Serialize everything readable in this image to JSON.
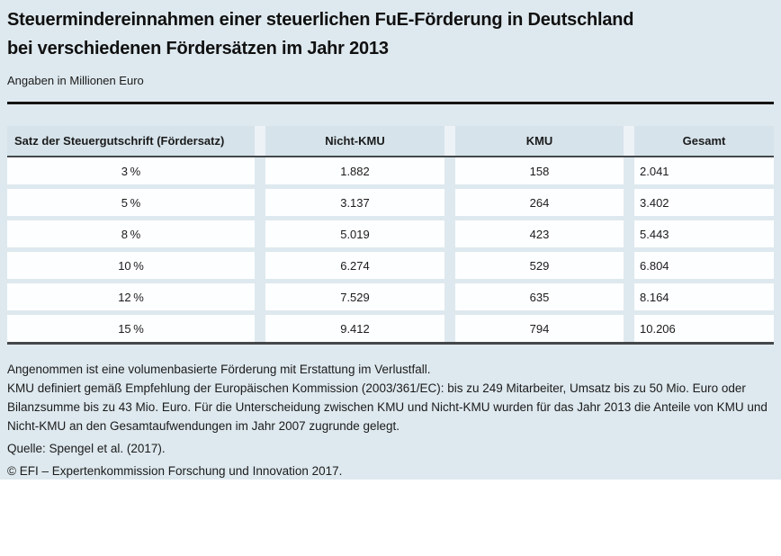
{
  "header": {
    "title_line1": "Steuermindereinnahmen einer steuerlichen FuE-Förderung in Deutschland",
    "title_line2": "bei verschiedenen Fördersätzen im Jahr 2013",
    "subtitle": "Angaben in Millionen Euro"
  },
  "table": {
    "columns": [
      "Satz der Steuergutschrift (Fördersatz)",
      "Nicht-KMU",
      "KMU",
      "Gesamt"
    ],
    "rows": [
      [
        "3 %",
        "1.882",
        "158",
        "2.041"
      ],
      [
        "5 %",
        "3.137",
        "264",
        "3.402"
      ],
      [
        "8 %",
        "5.019",
        "423",
        "5.443"
      ],
      [
        "10 %",
        "6.274",
        "529",
        "6.804"
      ],
      [
        "12 %",
        "7.529",
        "635",
        "8.164"
      ],
      [
        "15 %",
        "9.412",
        "794",
        "10.206"
      ]
    ]
  },
  "footnotes": {
    "note1": "Angenommen ist eine volumenbasierte Förderung mit Erstattung im Verlustfall.",
    "note2": "KMU definiert gemäß Empfehlung der Europäischen Kommission (2003/361/EC): bis zu 249 Mitarbeiter, Umsatz bis zu 50 Mio. Euro oder Bilanzsumme bis zu 43 Mio. Euro. Für die Unterscheidung zwischen KMU und Nicht-KMU wurden für das Jahr 2013 die Anteile von KMU und Nicht-KMU an den Gesamtaufwendungen im Jahr 2007 zugrunde gelegt.",
    "source": "Quelle: Spengel et al. (2017).",
    "copyright": "© EFI – Expertenkommission Forschung und Innovation 2017."
  },
  "colors": {
    "page_background": "#dee9ef",
    "header_cell_background": "#d6e3eb",
    "header_gap_background": "#ecf2f6",
    "data_cell_background": "#fdfeff",
    "rule_color": "#141414",
    "table_border_color": "#43484b",
    "text_color": "#1b1b1b"
  },
  "chart_data": {
    "type": "table",
    "title": "Steuermindereinnahmen einer steuerlichen FuE-Förderung in Deutschland bei verschiedenen Fördersätzen im Jahr 2013",
    "unit": "Millionen Euro",
    "columns": [
      "Satz der Steuergutschrift (Fördersatz)",
      "Nicht-KMU",
      "KMU",
      "Gesamt"
    ],
    "categories": [
      "3 %",
      "5 %",
      "8 %",
      "10 %",
      "12 %",
      "15 %"
    ],
    "series": [
      {
        "name": "Nicht-KMU",
        "values": [
          1882,
          3137,
          5019,
          6274,
          7529,
          9412
        ]
      },
      {
        "name": "KMU",
        "values": [
          158,
          264,
          423,
          529,
          635,
          794
        ]
      },
      {
        "name": "Gesamt",
        "values": [
          2041,
          3402,
          5443,
          6804,
          8164,
          10206
        ]
      }
    ]
  }
}
